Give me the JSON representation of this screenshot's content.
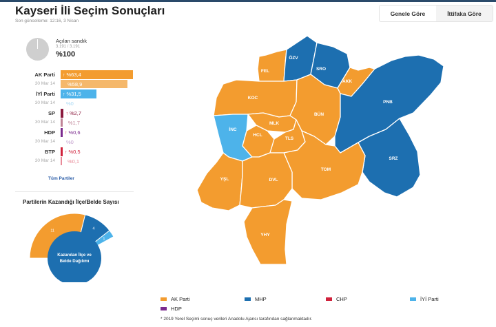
{
  "header": {
    "title": "Kayseri İli Seçim Sonuçları",
    "updated": "Son güncelleme: 12:16, 3 Nisan"
  },
  "tabs": [
    {
      "label": "Genele Göre",
      "active": false
    },
    {
      "label": "İttifaka Göre",
      "active": true
    }
  ],
  "ballot": {
    "label": "Açılan sandık",
    "count": "3.191 / 3.191",
    "percent": "%100"
  },
  "parties": [
    {
      "name": "AK Parti",
      "value": "%63,4",
      "old_label": "30 Mar 14",
      "old_value": "%58,9",
      "color": "#f39c2f",
      "old_color": "#f5b86b",
      "share": 63.4,
      "old_share": 58.9
    },
    {
      "name": "İYİ Parti",
      "value": "%31,5",
      "old_label": "30 Mar 14",
      "old_value": "%0",
      "color": "#4db3ea",
      "old_color": "#a9d9f4",
      "share": 31.5,
      "old_share": 0
    },
    {
      "name": "SP",
      "value": "%2,7",
      "old_label": "30 Mar 14",
      "old_value": "%1,7",
      "color": "#8b1a3e",
      "old_color": "#c08497",
      "share": 2.7,
      "old_share": 1.7
    },
    {
      "name": "HDP",
      "value": "%0,6",
      "old_label": "30 Mar 14",
      "old_value": "%0",
      "color": "#7b2a8e",
      "old_color": "#c29ccc",
      "share": 0.6,
      "old_share": 0
    },
    {
      "name": "BTP",
      "value": "%0,5",
      "old_label": "30 Mar 14",
      "old_value": "%0,1",
      "color": "#d0213b",
      "old_color": "#e88a98",
      "share": 0.5,
      "old_share": 0.1
    }
  ],
  "all_parties_link": "Tüm Partiler",
  "donut": {
    "title": "Partilerin Kazandığı İlçe/Belde Sayısı",
    "center_line1": "Kazanılan İlçe ve",
    "center_line2": "Belde Dağılımı",
    "segments": [
      {
        "party": "AK Parti",
        "count": "11",
        "value": 11,
        "color": "#f39c2f"
      },
      {
        "party": "MHP",
        "count": "4",
        "value": 4,
        "color": "#1d6fb0"
      },
      {
        "party": "İYİ Parti",
        "count": "1",
        "value": 1,
        "color": "#4db3ea"
      }
    ]
  },
  "map": {
    "districts": [
      {
        "code": "FEL",
        "party": "AK Parti"
      },
      {
        "code": "ÖZV",
        "party": "MHP"
      },
      {
        "code": "SRO",
        "party": "MHP"
      },
      {
        "code": "AKK",
        "party": "AK Parti"
      },
      {
        "code": "KOC",
        "party": "AK Parti"
      },
      {
        "code": "BÜN",
        "party": "AK Parti"
      },
      {
        "code": "PNB",
        "party": "MHP"
      },
      {
        "code": "İNC",
        "party": "İYİ Parti"
      },
      {
        "code": "MLK",
        "party": "AK Parti"
      },
      {
        "code": "HCL",
        "party": "AK Parti"
      },
      {
        "code": "TLS",
        "party": "AK Parti"
      },
      {
        "code": "SRZ",
        "party": "MHP"
      },
      {
        "code": "TOM",
        "party": "AK Parti"
      },
      {
        "code": "YŞL",
        "party": "AK Parti"
      },
      {
        "code": "DVL",
        "party": "AK Parti"
      },
      {
        "code": "YHY",
        "party": "AK Parti"
      }
    ]
  },
  "legend": [
    {
      "name": "AK Parti",
      "color": "#f39c2f"
    },
    {
      "name": "MHP",
      "color": "#1d6fb0"
    },
    {
      "name": "CHP",
      "color": "#d0213b"
    },
    {
      "name": "İYİ Parti",
      "color": "#4db3ea"
    },
    {
      "name": "HDP",
      "color": "#7b2a8e"
    }
  ],
  "footnote": "* 2019 Yerel Seçimi sonuç verileri Anadolu Ajansı tarafından sağlanmaktadır."
}
